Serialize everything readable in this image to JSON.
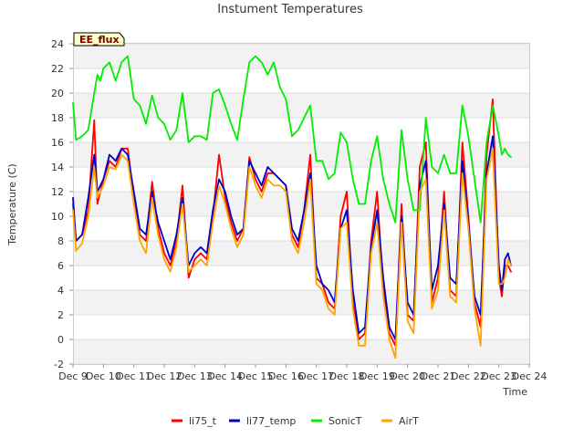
{
  "chart_data": {
    "type": "line",
    "title": "Instument Temperatures",
    "xlabel": "Time",
    "ylabel": "Temperature (C)",
    "badge": "EE_flux",
    "ylim": [
      -2,
      24
    ],
    "yticks": [
      -2,
      0,
      2,
      4,
      6,
      8,
      10,
      12,
      14,
      16,
      18,
      20,
      22,
      24
    ],
    "xlim": [
      9,
      24
    ],
    "xticks": [
      9,
      10,
      11,
      12,
      13,
      14,
      15,
      16,
      17,
      18,
      19,
      20,
      21,
      22,
      23,
      24
    ],
    "xtick_labels": [
      "Dec 9",
      "Dec 10",
      "Dec 11",
      "Dec 12",
      "Dec 13",
      "Dec 14",
      "Dec 15",
      "Dec 16",
      "Dec 17",
      "Dec 18",
      "Dec 19",
      "Dec 20",
      "Dec 21",
      "Dec 22",
      "Dec 23",
      "Dec 24"
    ],
    "series": [
      {
        "name": "li75_t",
        "color": "#ff0000",
        "x": [
          9.0,
          9.1,
          9.3,
          9.5,
          9.7,
          9.8,
          9.9,
          10.0,
          10.2,
          10.4,
          10.6,
          10.8,
          11.0,
          11.2,
          11.4,
          11.6,
          11.8,
          12.0,
          12.2,
          12.4,
          12.6,
          12.8,
          13.0,
          13.2,
          13.4,
          13.6,
          13.8,
          14.0,
          14.2,
          14.4,
          14.6,
          14.8,
          15.0,
          15.2,
          15.4,
          15.6,
          15.8,
          16.0,
          16.2,
          16.4,
          16.6,
          16.8,
          17.0,
          17.2,
          17.4,
          17.6,
          17.8,
          18.0,
          18.2,
          18.4,
          18.6,
          18.8,
          19.0,
          19.2,
          19.4,
          19.6,
          19.8,
          20.0,
          20.2,
          20.4,
          20.6,
          20.8,
          21.0,
          21.2,
          21.4,
          21.6,
          21.8,
          22.0,
          22.2,
          22.4,
          22.6,
          22.8,
          23.0,
          23.1,
          23.2,
          23.3,
          23.4
        ],
        "values": [
          11.0,
          8.0,
          8.5,
          10.5,
          17.8,
          11.0,
          12.0,
          13.0,
          14.5,
          14.0,
          15.5,
          15.5,
          11.5,
          8.5,
          8.0,
          12.8,
          9.0,
          7.0,
          6.0,
          8.0,
          12.5,
          5.0,
          6.5,
          7.0,
          6.5,
          10.0,
          15.0,
          11.5,
          9.5,
          8.0,
          9.0,
          14.8,
          13.0,
          12.0,
          13.5,
          13.5,
          13.0,
          12.5,
          8.5,
          7.5,
          10.5,
          15.0,
          5.0,
          4.5,
          3.0,
          2.5,
          10.0,
          12.0,
          3.0,
          0.0,
          0.5,
          8.0,
          12.0,
          4.0,
          0.5,
          -0.5,
          11.0,
          2.0,
          1.5,
          14.0,
          16.0,
          3.0,
          5.0,
          12.0,
          4.0,
          3.5,
          16.0,
          10.0,
          3.0,
          1.0,
          15.0,
          19.5,
          5.0,
          3.5,
          6.0,
          6.0,
          5.5
        ]
      },
      {
        "name": "li77_temp",
        "color": "#0000cc",
        "x": [
          9.0,
          9.1,
          9.3,
          9.5,
          9.7,
          9.8,
          9.9,
          10.0,
          10.2,
          10.4,
          10.6,
          10.8,
          11.0,
          11.2,
          11.4,
          11.6,
          11.8,
          12.0,
          12.2,
          12.4,
          12.6,
          12.8,
          13.0,
          13.2,
          13.4,
          13.6,
          13.8,
          14.0,
          14.2,
          14.4,
          14.6,
          14.8,
          15.0,
          15.2,
          15.4,
          15.6,
          15.8,
          16.0,
          16.2,
          16.4,
          16.6,
          16.8,
          17.0,
          17.2,
          17.4,
          17.6,
          17.8,
          18.0,
          18.2,
          18.4,
          18.6,
          18.8,
          19.0,
          19.2,
          19.4,
          19.6,
          19.8,
          20.0,
          20.2,
          20.4,
          20.6,
          20.8,
          21.0,
          21.2,
          21.4,
          21.6,
          21.8,
          22.0,
          22.2,
          22.4,
          22.6,
          22.8,
          23.0,
          23.1,
          23.2,
          23.3,
          23.4
        ],
        "values": [
          11.5,
          8.0,
          8.5,
          11.5,
          15.0,
          12.0,
          12.5,
          13.0,
          15.0,
          14.5,
          15.5,
          15.0,
          12.0,
          9.0,
          8.5,
          12.0,
          9.5,
          8.0,
          6.5,
          8.5,
          11.5,
          6.0,
          7.0,
          7.5,
          7.0,
          10.5,
          13.0,
          12.0,
          10.0,
          8.5,
          9.0,
          14.5,
          13.5,
          12.5,
          14.0,
          13.5,
          13.0,
          12.5,
          9.0,
          8.0,
          10.5,
          13.5,
          6.0,
          4.5,
          4.0,
          3.0,
          9.0,
          10.5,
          4.0,
          0.5,
          1.0,
          7.5,
          10.5,
          5.0,
          1.0,
          0.0,
          10.0,
          3.0,
          2.0,
          12.5,
          14.5,
          4.0,
          6.0,
          11.0,
          5.0,
          4.5,
          14.5,
          9.5,
          3.5,
          2.0,
          13.5,
          16.5,
          6.0,
          4.0,
          6.5,
          7.0,
          6.0
        ]
      },
      {
        "name": "SonicT",
        "color": "#00ee00",
        "x": [
          9.0,
          9.1,
          9.3,
          9.5,
          9.7,
          9.8,
          9.9,
          10.0,
          10.2,
          10.4,
          10.6,
          10.8,
          11.0,
          11.2,
          11.4,
          11.6,
          11.8,
          12.0,
          12.2,
          12.4,
          12.6,
          12.8,
          13.0,
          13.2,
          13.4,
          13.6,
          13.8,
          14.0,
          14.2,
          14.4,
          14.6,
          14.8,
          15.0,
          15.2,
          15.4,
          15.6,
          15.8,
          16.0,
          16.2,
          16.4,
          16.6,
          16.8,
          17.0,
          17.2,
          17.4,
          17.6,
          17.8,
          18.0,
          18.2,
          18.4,
          18.6,
          18.8,
          19.0,
          19.2,
          19.4,
          19.6,
          19.8,
          20.0,
          20.2,
          20.4,
          20.6,
          20.8,
          21.0,
          21.2,
          21.4,
          21.6,
          21.8,
          22.0,
          22.2,
          22.4,
          22.6,
          22.8,
          23.0,
          23.1,
          23.2,
          23.3,
          23.4
        ],
        "values": [
          19.2,
          16.2,
          16.5,
          17.0,
          20.0,
          21.5,
          21.0,
          22.0,
          22.5,
          21.0,
          22.5,
          23.0,
          19.5,
          19.0,
          17.5,
          19.8,
          18.0,
          17.5,
          16.2,
          17.0,
          20.0,
          16.0,
          16.5,
          16.5,
          16.2,
          20.0,
          20.3,
          19.0,
          17.5,
          16.2,
          19.5,
          22.5,
          23.0,
          22.5,
          21.5,
          22.5,
          20.5,
          19.5,
          16.5,
          17.0,
          18.0,
          19.0,
          14.5,
          14.5,
          13.0,
          13.5,
          16.8,
          16.0,
          13.0,
          11.0,
          11.0,
          14.5,
          16.5,
          13.0,
          11.0,
          9.5,
          17.0,
          13.0,
          10.5,
          10.5,
          18.0,
          14.0,
          13.5,
          15.0,
          13.5,
          13.5,
          19.0,
          16.5,
          13.0,
          9.5,
          16.0,
          19.0,
          16.5,
          15.0,
          15.5,
          15.0,
          14.8
        ]
      },
      {
        "name": "AirT",
        "color": "#ffa500",
        "x": [
          9.0,
          9.1,
          9.3,
          9.5,
          9.7,
          9.8,
          9.9,
          10.0,
          10.2,
          10.4,
          10.6,
          10.8,
          11.0,
          11.2,
          11.4,
          11.6,
          11.8,
          12.0,
          12.2,
          12.4,
          12.6,
          12.8,
          13.0,
          13.2,
          13.4,
          13.6,
          13.8,
          14.0,
          14.2,
          14.4,
          14.6,
          14.8,
          15.0,
          15.2,
          15.4,
          15.6,
          15.8,
          16.0,
          16.2,
          16.4,
          16.6,
          16.8,
          17.0,
          17.2,
          17.4,
          17.6,
          17.8,
          18.0,
          18.2,
          18.4,
          18.6,
          18.8,
          19.0,
          19.2,
          19.4,
          19.6,
          19.8,
          20.0,
          20.2,
          20.4,
          20.6,
          20.8,
          21.0,
          21.2,
          21.4,
          21.6,
          21.8,
          22.0,
          22.2,
          22.4,
          22.6,
          22.8,
          23.0,
          23.1,
          23.2,
          23.3,
          23.4
        ],
        "values": [
          10.5,
          7.2,
          7.8,
          10.0,
          14.0,
          11.5,
          12.0,
          12.5,
          14.0,
          13.8,
          15.0,
          14.5,
          11.0,
          8.0,
          7.0,
          11.5,
          8.5,
          6.5,
          5.5,
          7.5,
          11.0,
          5.5,
          6.0,
          6.5,
          6.0,
          9.5,
          12.5,
          11.0,
          9.0,
          7.5,
          8.5,
          14.0,
          12.5,
          11.5,
          13.0,
          12.5,
          12.5,
          12.0,
          8.0,
          7.0,
          9.5,
          13.0,
          4.5,
          4.0,
          2.5,
          2.0,
          9.0,
          9.5,
          2.5,
          -0.5,
          -0.5,
          7.0,
          9.5,
          3.5,
          0.0,
          -1.5,
          9.5,
          1.5,
          0.5,
          12.0,
          13.0,
          2.5,
          4.0,
          10.5,
          3.5,
          3.0,
          13.5,
          9.0,
          2.5,
          -0.5,
          13.0,
          15.5,
          4.5,
          4.5,
          5.0,
          6.5,
          6.0
        ]
      }
    ]
  }
}
